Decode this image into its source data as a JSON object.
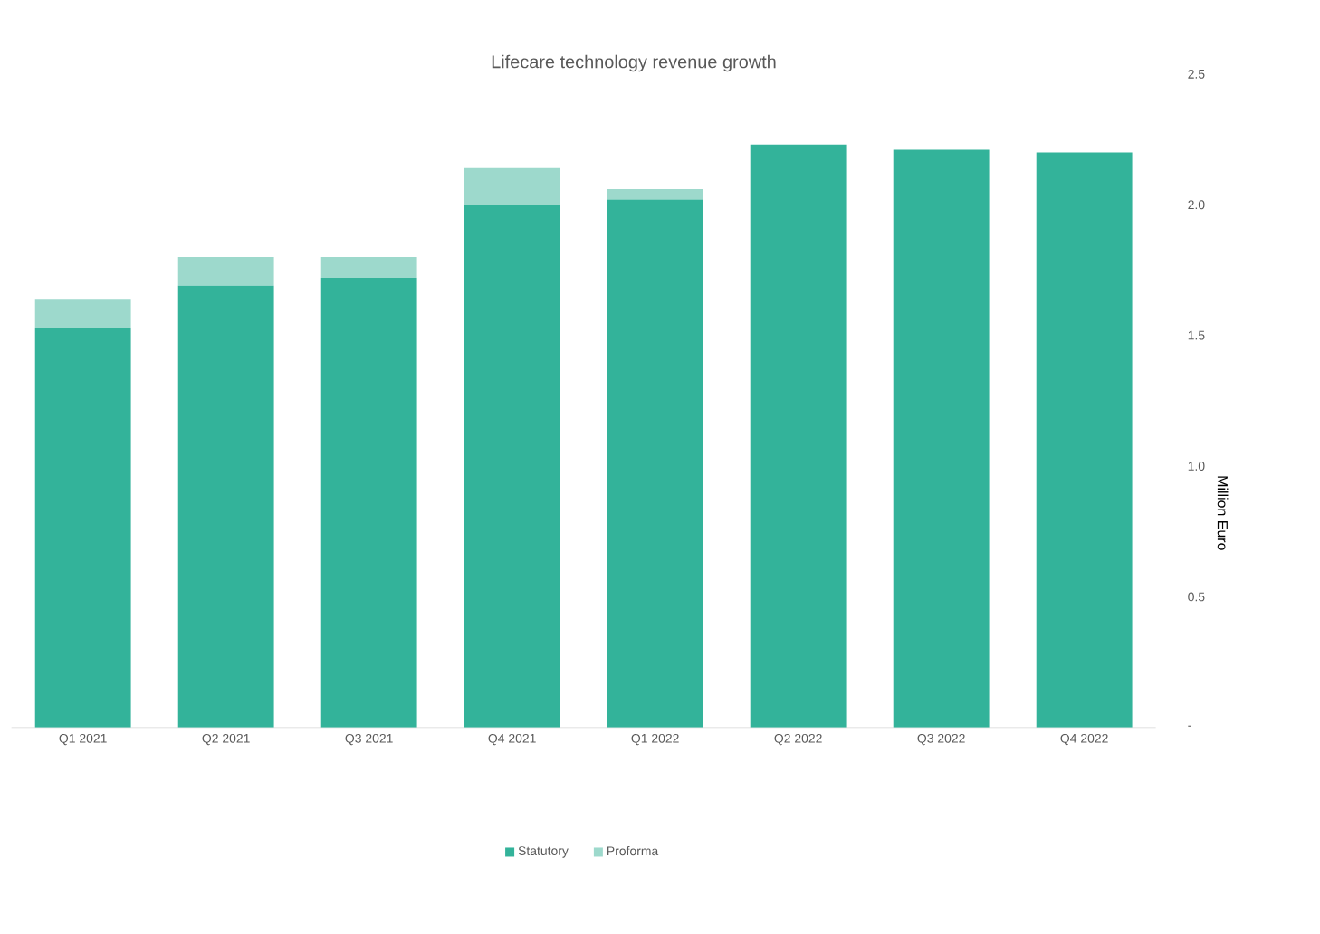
{
  "chart_data": {
    "type": "bar",
    "title": "Lifecare technology revenue growth",
    "ylabel": "Million Euro",
    "categories": [
      "Q1 2021",
      "Q2 2021",
      "Q3 2021",
      "Q4 2021",
      "Q1 2022",
      "Q2 2022",
      "Q3 2022",
      "Q4 2022"
    ],
    "series": [
      {
        "name": "Statutory",
        "color": "#33b39a",
        "values": [
          1.53,
          1.69,
          1.72,
          2.0,
          2.02,
          2.23,
          2.21,
          2.2
        ]
      },
      {
        "name": "Proforma",
        "color": "#9dd9cc",
        "values": [
          0.11,
          0.11,
          0.08,
          0.14,
          0.04,
          null,
          null,
          null
        ]
      }
    ],
    "stacked": true,
    "ylim": [
      0,
      2.5
    ],
    "yticks": [
      {
        "value": 0,
        "label": "-"
      },
      {
        "value": 0.5,
        "label": "0.5"
      },
      {
        "value": 1,
        "label": "1.0"
      },
      {
        "value": 1.5,
        "label": "1.5"
      },
      {
        "value": 2,
        "label": "2.0"
      },
      {
        "value": 2.5,
        "label": "2.5"
      }
    ],
    "grid": false,
    "legend": "bottom"
  }
}
